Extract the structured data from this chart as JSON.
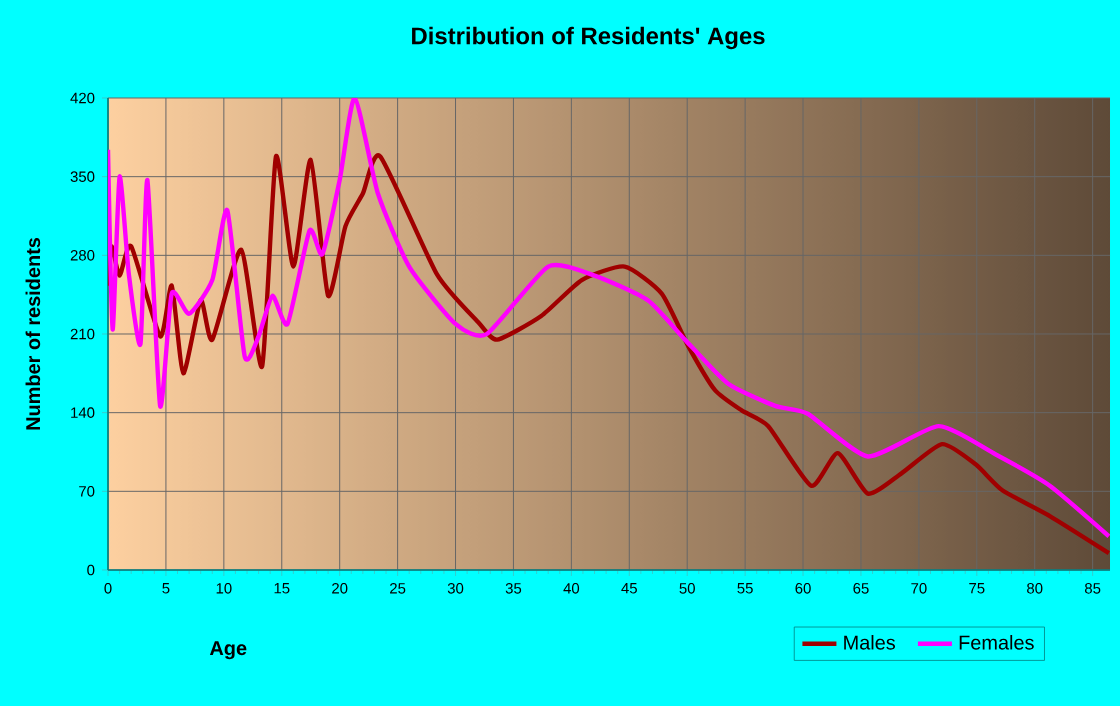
{
  "chart_data": {
    "type": "line",
    "title": "Distribution of Residents' Ages",
    "xlabel": "Age",
    "ylabel": "Number of residents",
    "xlim": [
      0,
      86.5
    ],
    "ylim": [
      0,
      420
    ],
    "xticks": [
      0,
      5,
      10,
      15,
      20,
      25,
      30,
      35,
      40,
      45,
      50,
      55,
      60,
      65,
      70,
      75,
      80,
      85
    ],
    "yticks": [
      0,
      70,
      140,
      210,
      280,
      350,
      420
    ],
    "grid": true,
    "legend": "bottom right",
    "marker": "none",
    "line_style": "solid",
    "series": [
      {
        "name": "Males",
        "color": "#a00000",
        "x": [
          0,
          0.3,
          1,
          2,
          4.5,
          5.5,
          6.5,
          8,
          9,
          11.5,
          13.3,
          14.5,
          16,
          17.5,
          19,
          20.5,
          22,
          23.5,
          28.4,
          32,
          33.6,
          37.4,
          40.9,
          44.6,
          47.8,
          50.1,
          52.4,
          54.7,
          57,
          60.7,
          63,
          65.6,
          68.5,
          72,
          74.9,
          77.2,
          81.3,
          86.4
        ],
        "values": [
          253,
          288,
          262,
          288,
          208,
          253,
          175,
          240,
          205,
          285,
          181,
          368,
          270,
          365,
          244,
          306,
          335,
          368,
          263,
          220,
          205,
          226,
          258,
          270,
          246,
          199,
          160,
          142,
          128,
          75,
          104,
          68,
          86,
          112,
          94,
          71,
          48,
          15
        ]
      },
      {
        "name": "Females",
        "color": "#ff00ff",
        "x": [
          0,
          0.4,
          1,
          1.8,
          2.8,
          3.4,
          4.5,
          5.5,
          7,
          9,
          10.3,
          11.8,
          13,
          14.2,
          15.5,
          17.4,
          18.5,
          20,
          21.3,
          23.3,
          26,
          30,
          32.7,
          38,
          42,
          46.6,
          49.8,
          53.5,
          57.6,
          60.4,
          65.6,
          71.7,
          76.6,
          81.3,
          86.4
        ],
        "values": [
          374,
          214,
          350,
          263,
          201,
          347,
          146,
          246,
          228,
          258,
          320,
          190,
          208,
          244,
          219,
          302,
          281,
          347,
          420,
          335,
          270,
          219,
          210,
          270,
          262,
          240,
          205,
          166,
          146,
          139,
          101,
          128,
          103,
          75,
          30
        ]
      }
    ]
  }
}
